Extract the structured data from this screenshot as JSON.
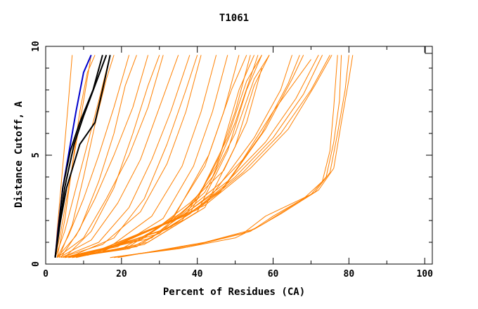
{
  "chart_data": {
    "type": "line",
    "title": "T1061",
    "xlabel": "Percent of Residues (CA)",
    "ylabel": "Distance Cutoff, A",
    "xlim": [
      0,
      102
    ],
    "ylim": [
      0,
      10
    ],
    "x_ticks": [
      "0",
      "20",
      "40",
      "60",
      "80",
      "100"
    ],
    "y_ticks": [
      "0",
      "5",
      "10"
    ],
    "x_tick_values": [
      0,
      20,
      40,
      60,
      80,
      100
    ],
    "y_tick_values": [
      0,
      5,
      10
    ],
    "grid": false,
    "colors": {
      "orange": "#ff8000",
      "blue": "#0000cc",
      "black": "#000000",
      "axis": "#000000"
    },
    "series": [
      {
        "color": "#ff8000",
        "points": [
          [
            2.5,
            0.3
          ],
          [
            3,
            1.5
          ],
          [
            4,
            3.5
          ],
          [
            5,
            5.5
          ],
          [
            6,
            7.5
          ],
          [
            7,
            9.6
          ]
        ]
      },
      {
        "color": "#ff8000",
        "points": [
          [
            2.5,
            0.3
          ],
          [
            4,
            1.5
          ],
          [
            6,
            3.5
          ],
          [
            8,
            5.5
          ],
          [
            10,
            7.5
          ],
          [
            12,
            9.6
          ]
        ]
      },
      {
        "color": "#ff8000",
        "points": [
          [
            2.5,
            0.3
          ],
          [
            5,
            1.5
          ],
          [
            8,
            3.5
          ],
          [
            11,
            5.5
          ],
          [
            14,
            7.5
          ],
          [
            17,
            9.6
          ]
        ]
      },
      {
        "color": "#ff8000",
        "points": [
          [
            3,
            0.3
          ],
          [
            6,
            1.3
          ],
          [
            10,
            3
          ],
          [
            14,
            5
          ],
          [
            18,
            7.2
          ],
          [
            22,
            9.6
          ]
        ]
      },
      {
        "color": "#ff8000",
        "points": [
          [
            3,
            0.3
          ],
          [
            8,
            1.3
          ],
          [
            13,
            3
          ],
          [
            18,
            5
          ],
          [
            23,
            7.2
          ],
          [
            27,
            9.6
          ]
        ]
      },
      {
        "color": "#ff8000",
        "points": [
          [
            3,
            0.3
          ],
          [
            10,
            1.2
          ],
          [
            16,
            3
          ],
          [
            22,
            5
          ],
          [
            27,
            7.2
          ],
          [
            31,
            9.6
          ]
        ]
      },
      {
        "color": "#ff8000",
        "points": [
          [
            3.5,
            0.3
          ],
          [
            12,
            1.1
          ],
          [
            19,
            2.8
          ],
          [
            25,
            4.8
          ],
          [
            30,
            7.2
          ],
          [
            35,
            9.6
          ]
        ]
      },
      {
        "color": "#ff8000",
        "points": [
          [
            4,
            0.3
          ],
          [
            14,
            1
          ],
          [
            22,
            2.6
          ],
          [
            28,
            4.8
          ],
          [
            33,
            7
          ],
          [
            38,
            9.6
          ]
        ]
      },
      {
        "color": "#ff8000",
        "points": [
          [
            4,
            0.3
          ],
          [
            15,
            0.9
          ],
          [
            25,
            2.4
          ],
          [
            32,
            4.6
          ],
          [
            37,
            7
          ],
          [
            41,
            9.6
          ]
        ]
      },
      {
        "color": "#ff8000",
        "points": [
          [
            4.5,
            0.3
          ],
          [
            17,
            0.8
          ],
          [
            28,
            2.2
          ],
          [
            36,
            4.5
          ],
          [
            41,
            7
          ],
          [
            45,
            9.6
          ]
        ]
      },
      {
        "color": "#ff8000",
        "points": [
          [
            5,
            0.3
          ],
          [
            19,
            0.8
          ],
          [
            31,
            2.1
          ],
          [
            39,
            4.5
          ],
          [
            44,
            7
          ],
          [
            48,
            9.6
          ]
        ]
      },
      {
        "color": "#ff8000",
        "points": [
          [
            5,
            0.3
          ],
          [
            20,
            0.7
          ],
          [
            33,
            2
          ],
          [
            42,
            4.5
          ],
          [
            47,
            7
          ],
          [
            51,
            9.6
          ]
        ]
      },
      {
        "color": "#ff8000",
        "points": [
          [
            6,
            0.3
          ],
          [
            22,
            0.7
          ],
          [
            36,
            2
          ],
          [
            45,
            4.5
          ],
          [
            50,
            7
          ],
          [
            54,
            9.6
          ]
        ]
      },
      {
        "color": "#ff8000",
        "points": [
          [
            6,
            0.3
          ],
          [
            22,
            0.8
          ],
          [
            34,
            2.2
          ],
          [
            43,
            5
          ],
          [
            49,
            8
          ],
          [
            53,
            9.6
          ]
        ]
      },
      {
        "color": "#ff8000",
        "points": [
          [
            7,
            0.3
          ],
          [
            24,
            0.8
          ],
          [
            38,
            2.3
          ],
          [
            46,
            5
          ],
          [
            51,
            8
          ],
          [
            55,
            9.6
          ]
        ]
      },
      {
        "color": "#ff8000",
        "points": [
          [
            7,
            0.3
          ],
          [
            26,
            0.9
          ],
          [
            40,
            2.4
          ],
          [
            48,
            5.2
          ],
          [
            53,
            8
          ],
          [
            57,
            9.6
          ]
        ]
      },
      {
        "color": "#ff8000",
        "points": [
          [
            8,
            0.3
          ],
          [
            27,
            1
          ],
          [
            42,
            2.6
          ],
          [
            50,
            5.4
          ],
          [
            55,
            8.2
          ],
          [
            59,
            9.6
          ]
        ]
      },
      {
        "color": "#ff8000",
        "points": [
          [
            6,
            0.3
          ],
          [
            18,
            1.2
          ],
          [
            26,
            3
          ],
          [
            32,
            5.5
          ],
          [
            37,
            8
          ],
          [
            40,
            9.6
          ]
        ]
      },
      {
        "color": "#ff8000",
        "points": [
          [
            5,
            0.3
          ],
          [
            12,
            1.5
          ],
          [
            18,
            3.5
          ],
          [
            23,
            6
          ],
          [
            27,
            8.2
          ],
          [
            30,
            9.6
          ]
        ]
      },
      {
        "color": "#ff8000",
        "points": [
          [
            4,
            0.3
          ],
          [
            9,
            1.6
          ],
          [
            14,
            3.8
          ],
          [
            18,
            6
          ],
          [
            21,
            8.2
          ],
          [
            24,
            9.6
          ]
        ]
      },
      {
        "color": "#ff8000",
        "points": [
          [
            3.5,
            0.3
          ],
          [
            7,
            1.8
          ],
          [
            10,
            4
          ],
          [
            13,
            6.4
          ],
          [
            16,
            8.5
          ],
          [
            18,
            9.6
          ]
        ]
      },
      {
        "color": "#ff8000",
        "points": [
          [
            3,
            0.3
          ],
          [
            5,
            2
          ],
          [
            7,
            4.5
          ],
          [
            9,
            7
          ],
          [
            11,
            8.8
          ],
          [
            13,
            9.6
          ]
        ]
      },
      {
        "color": "#ff8000",
        "points": [
          [
            8,
            0.4
          ],
          [
            28,
            1.2
          ],
          [
            40,
            3
          ],
          [
            48,
            5.8
          ],
          [
            53,
            8.4
          ],
          [
            57,
            9.6
          ]
        ]
      },
      {
        "color": "#ff8000",
        "points": [
          [
            9,
            0.4
          ],
          [
            30,
            1.4
          ],
          [
            42,
            3.3
          ],
          [
            50,
            6
          ],
          [
            55,
            8.5
          ],
          [
            59,
            9.6
          ]
        ]
      },
      {
        "color": "#ff8000",
        "points": [
          [
            10,
            0.4
          ],
          [
            30,
            1.5
          ],
          [
            44,
            3.2
          ],
          [
            55,
            5.8
          ],
          [
            62,
            8
          ],
          [
            65,
            9.6
          ]
        ]
      },
      {
        "color": "#ff8000",
        "points": [
          [
            10,
            0.4
          ],
          [
            32,
            1.6
          ],
          [
            46,
            3.3
          ],
          [
            57,
            6
          ],
          [
            64,
            8.3
          ],
          [
            67,
            9.6
          ]
        ]
      },
      {
        "color": "#ff8000",
        "points": [
          [
            11,
            0.4
          ],
          [
            33,
            1.7
          ],
          [
            47,
            3.5
          ],
          [
            58,
            6.2
          ],
          [
            65,
            8.5
          ],
          [
            68,
            9.6
          ]
        ]
      },
      {
        "color": "#ff8000",
        "points": [
          [
            5,
            0.3
          ],
          [
            25,
            1.1
          ],
          [
            37,
            2.5
          ],
          [
            44,
            4
          ],
          [
            50,
            6.5
          ],
          [
            56,
            9.6
          ]
        ]
      },
      {
        "color": "#ff8000",
        "points": [
          [
            6,
            0.3
          ],
          [
            26,
            1.2
          ],
          [
            38,
            2.8
          ],
          [
            47,
            4.3
          ],
          [
            53,
            6.5
          ],
          [
            57,
            9
          ]
        ]
      },
      {
        "color": "#ff8000",
        "points": [
          [
            12,
            0.5
          ],
          [
            34,
            2
          ],
          [
            46,
            3.7
          ],
          [
            52,
            4.8
          ],
          [
            60,
            7
          ],
          [
            70,
            9.4
          ]
        ]
      },
      {
        "color": "#ff8000",
        "points": [
          [
            12,
            0.5
          ],
          [
            36,
            2.2
          ],
          [
            48,
            3.8
          ],
          [
            58,
            5.6
          ],
          [
            66,
            7.6
          ],
          [
            72,
            9.6
          ]
        ]
      },
      {
        "color": "#ff8000",
        "points": [
          [
            13,
            0.5
          ],
          [
            38,
            2.3
          ],
          [
            50,
            4
          ],
          [
            60,
            5.8
          ],
          [
            68,
            7.8
          ],
          [
            73,
            9.6
          ]
        ]
      },
      {
        "color": "#ff8000",
        "points": [
          [
            14,
            0.5
          ],
          [
            40,
            2.5
          ],
          [
            52,
            4.2
          ],
          [
            62,
            6
          ],
          [
            70,
            8
          ],
          [
            75,
            9.6
          ]
        ]
      },
      {
        "color": "#ff8000",
        "points": [
          [
            15,
            0.6
          ],
          [
            42,
            2.7
          ],
          [
            54,
            4.4
          ],
          [
            64,
            6.2
          ],
          [
            71,
            8.2
          ],
          [
            75.5,
            9.6
          ]
        ]
      },
      {
        "color": "#ff8000",
        "points": [
          [
            17,
            0.3
          ],
          [
            35,
            0.7
          ],
          [
            50,
            1.2
          ],
          [
            57,
            1.8
          ],
          [
            68,
            3
          ],
          [
            73,
            3.8
          ],
          [
            75,
            5.2
          ],
          [
            76,
            7.2
          ],
          [
            77,
            9.6
          ]
        ]
      },
      {
        "color": "#ff8000",
        "points": [
          [
            17,
            0.3
          ],
          [
            38,
            0.8
          ],
          [
            52,
            1.4
          ],
          [
            58,
            2.2
          ],
          [
            70,
            3.2
          ],
          [
            74,
            4
          ],
          [
            76,
            5.6
          ],
          [
            77.5,
            7.5
          ],
          [
            78,
            9.6
          ]
        ]
      },
      {
        "color": "#ff8000",
        "points": [
          [
            18,
            0.3
          ],
          [
            40,
            0.9
          ],
          [
            54,
            1.5
          ],
          [
            60,
            2.2
          ],
          [
            71,
            3.3
          ],
          [
            75,
            4.2
          ],
          [
            77,
            6
          ],
          [
            79,
            8
          ],
          [
            80,
            9.6
          ]
        ]
      },
      {
        "color": "#ff8000",
        "points": [
          [
            19,
            0.3
          ],
          [
            42,
            1
          ],
          [
            55,
            1.6
          ],
          [
            62,
            2.3
          ],
          [
            72,
            3.4
          ],
          [
            76,
            4.4
          ],
          [
            78,
            6.5
          ],
          [
            80,
            8.5
          ],
          [
            81,
            9.6
          ]
        ]
      },
      {
        "color": "#0000cc",
        "points": [
          [
            2.5,
            0.3
          ],
          [
            3.2,
            1.5
          ],
          [
            4.5,
            3.5
          ],
          [
            6,
            5
          ],
          [
            8,
            7
          ],
          [
            10,
            8.8
          ],
          [
            12,
            9.6
          ]
        ]
      },
      {
        "color": "#000000",
        "points": [
          [
            2.5,
            0.3
          ],
          [
            3.5,
            1.5
          ],
          [
            5,
            3.5
          ],
          [
            7.5,
            5.5
          ],
          [
            10,
            6.8
          ],
          [
            13,
            8.2
          ],
          [
            16,
            9.6
          ]
        ]
      },
      {
        "color": "#000000",
        "points": [
          [
            2.5,
            0.3
          ],
          [
            3.3,
            1.5
          ],
          [
            4.5,
            3.5
          ],
          [
            6.5,
            5.2
          ],
          [
            9,
            6.5
          ],
          [
            12.5,
            8
          ],
          [
            15,
            9.6
          ]
        ]
      },
      {
        "color": "#000000",
        "points": [
          [
            2.5,
            0.3
          ],
          [
            3.4,
            1.5
          ],
          [
            5.5,
            3.5
          ],
          [
            9,
            5.5
          ],
          [
            13,
            6.5
          ],
          [
            15,
            8
          ],
          [
            17,
            9.6
          ]
        ]
      }
    ]
  }
}
